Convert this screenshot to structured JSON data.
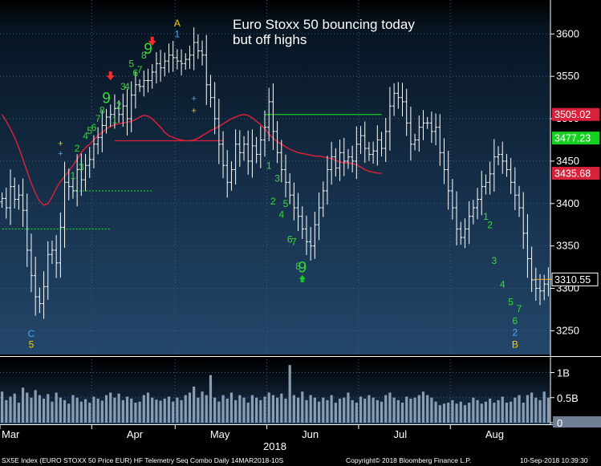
{
  "chart_data": {
    "type": "ohlc",
    "annotation_lines": [
      "Euro Stoxx 50 bouncing today",
      "but off highs"
    ],
    "y_ticks": [
      "3600",
      "3550",
      "3500",
      "3450",
      "3400",
      "3350",
      "3300",
      "3250"
    ],
    "ylim": [
      3222,
      3640
    ],
    "months": [
      {
        "label": "Mar",
        "index": 0
      },
      {
        "label": "Apr",
        "index": 22
      },
      {
        "label": "May",
        "index": 42
      },
      {
        "label": "Jun",
        "index": 64
      },
      {
        "label": "Jul",
        "index": 86
      },
      {
        "label": "Aug",
        "index": 108
      }
    ],
    "year_label": "2018",
    "price_tags": [
      {
        "value": 3505.02,
        "label": "3505.02",
        "color": "#d8213a",
        "text_color": "#ffffff"
      },
      {
        "value": 3477.23,
        "label": "3477.23",
        "color": "#15d11f",
        "text_color": "#ffffff"
      },
      {
        "value": 3435.68,
        "label": "3435.68",
        "color": "#d8213a",
        "text_color": "#ffffff"
      },
      {
        "value": 3310.55,
        "label": "3310.55",
        "color": "#000000",
        "text_color": "#ffffff"
      }
    ],
    "closes": [
      3406,
      3395,
      3420,
      3405,
      3410,
      3392,
      3345,
      3315,
      3290,
      3282,
      3302,
      3340,
      3345,
      3330,
      3372,
      3425,
      3420,
      3415,
      3440,
      3428,
      3445,
      3452,
      3470,
      3478,
      3492,
      3502,
      3505,
      3512,
      3505,
      3515,
      3500,
      3528,
      3540,
      3538,
      3545,
      3545,
      3555,
      3565,
      3560,
      3568,
      3575,
      3572,
      3568,
      3565,
      3570,
      3575,
      3590,
      3580,
      3575,
      3540,
      3525,
      3500,
      3470,
      3445,
      3425,
      3440,
      3470,
      3460,
      3470,
      3450,
      3468,
      3458,
      3475,
      3490,
      3520,
      3485,
      3460,
      3440,
      3425,
      3410,
      3395,
      3385,
      3370,
      3355,
      3350,
      3375,
      3395,
      3415,
      3440,
      3455,
      3442,
      3460,
      3450,
      3455,
      3450,
      3470,
      3480,
      3465,
      3458,
      3462,
      3475,
      3465,
      3485,
      3515,
      3530,
      3525,
      3520,
      3495,
      3470,
      3475,
      3490,
      3495,
      3495,
      3485,
      3490,
      3460,
      3440,
      3415,
      3395,
      3370,
      3360,
      3370,
      3385,
      3395,
      3405,
      3420,
      3425,
      3435,
      3455,
      3458,
      3450,
      3440,
      3425,
      3410,
      3395,
      3365,
      3335,
      3310,
      3300,
      3297,
      3305,
      3310.55
    ],
    "moving_average": [
      3505,
      3497,
      3488,
      3478,
      3466,
      3452,
      3438,
      3424,
      3412,
      3403,
      3398,
      3400,
      3408,
      3418,
      3426,
      3432,
      3438,
      3445,
      3452,
      3460,
      3466,
      3470,
      3475,
      3480,
      3484,
      3488,
      3491,
      3493,
      3494,
      3495,
      3496,
      3497,
      3499,
      3502,
      3504,
      3503,
      3500,
      3495,
      3490,
      3484,
      3480,
      3478,
      3476,
      3475,
      3474,
      3474,
      3475,
      3477,
      3480,
      3483,
      3486,
      3488,
      3491,
      3494,
      3497,
      3500,
      3502,
      3504,
      3505,
      3504,
      3501,
      3497,
      3493,
      3488,
      3482,
      3477,
      3473,
      3470,
      3467,
      3464,
      3462,
      3460,
      3459,
      3458,
      3457,
      3456,
      3456,
      3455,
      3454,
      3453,
      3451,
      3449,
      3448,
      3448,
      3447,
      3446,
      3443,
      3440,
      3438,
      3437,
      3436,
      3435.68
    ],
    "ma_start_index": 0,
    "resistance_lines": [
      {
        "price": 3474,
        "from": 27,
        "to": 53,
        "style": "solid",
        "color": "#d8213a"
      },
      {
        "price": 3505,
        "from": 63,
        "to": 91,
        "style": "solid",
        "color": "#15d11f"
      },
      {
        "price": 3415,
        "from": 17,
        "to": 36,
        "style": "dotted",
        "color": "#15d11f"
      },
      {
        "price": 3370,
        "from": 0,
        "to": 26,
        "style": "dotted",
        "color": "#15d11f"
      }
    ],
    "seq_labels": [
      {
        "t": "1",
        "i": 17,
        "p": 3433,
        "color": "#33dd33",
        "size": 12
      },
      {
        "t": "2",
        "i": 18,
        "p": 3465,
        "color": "#33dd33",
        "size": 12
      },
      {
        "t": "3",
        "i": 19,
        "p": 3443,
        "color": "#33dd33",
        "size": 12
      },
      {
        "t": "4",
        "i": 20,
        "p": 3480,
        "color": "#33dd33",
        "size": 12
      },
      {
        "t": "5",
        "i": 21,
        "p": 3486,
        "color": "#33dd33",
        "size": 12
      },
      {
        "t": "6",
        "i": 22,
        "p": 3490,
        "color": "#33dd33",
        "size": 12
      },
      {
        "t": "7",
        "i": 23,
        "p": 3500,
        "color": "#33dd33",
        "size": 12
      },
      {
        "t": "8",
        "i": 24,
        "p": 3510,
        "color": "#33dd33",
        "size": 12
      },
      {
        "t": "9",
        "i": 25,
        "p": 3525,
        "color": "#33dd33",
        "size": 19
      },
      {
        "t": "1",
        "i": 27,
        "p": 3499,
        "color": "#33dd33",
        "size": 12
      },
      {
        "t": "2",
        "i": 28,
        "p": 3516,
        "color": "#33dd33",
        "size": 12
      },
      {
        "t": "3",
        "i": 29,
        "p": 3538,
        "color": "#33dd33",
        "size": 12
      },
      {
        "t": "4",
        "i": 30,
        "p": 3538,
        "color": "#33dd33",
        "size": 12
      },
      {
        "t": "5",
        "i": 31,
        "p": 3565,
        "color": "#33dd33",
        "size": 12
      },
      {
        "t": "6",
        "i": 32,
        "p": 3554,
        "color": "#33dd33",
        "size": 12
      },
      {
        "t": "7",
        "i": 33,
        "p": 3558,
        "color": "#33dd33",
        "size": 12
      },
      {
        "t": "8",
        "i": 34,
        "p": 3575,
        "color": "#33dd33",
        "size": 12
      },
      {
        "t": "9",
        "i": 35,
        "p": 3583,
        "color": "#33dd33",
        "size": 19
      },
      {
        "t": "A",
        "i": 42,
        "p": 3613,
        "color": "#ffcc00",
        "size": 12
      },
      {
        "t": "1",
        "i": 42,
        "p": 3600,
        "color": "#44aaff",
        "size": 12
      },
      {
        "t": "1",
        "i": 64,
        "p": 3445,
        "color": "#33dd33",
        "size": 12
      },
      {
        "t": "3",
        "i": 66,
        "p": 3430,
        "color": "#33dd33",
        "size": 12
      },
      {
        "t": "2",
        "i": 65,
        "p": 3403,
        "color": "#33dd33",
        "size": 12
      },
      {
        "t": "5",
        "i": 68,
        "p": 3400,
        "color": "#33dd33",
        "size": 12
      },
      {
        "t": "4",
        "i": 67,
        "p": 3387,
        "color": "#33dd33",
        "size": 12
      },
      {
        "t": "6",
        "i": 69,
        "p": 3358,
        "color": "#33dd33",
        "size": 12
      },
      {
        "t": "7",
        "i": 70,
        "p": 3355,
        "color": "#33dd33",
        "size": 12
      },
      {
        "t": "8",
        "i": 71,
        "p": 3326,
        "color": "#33dd33",
        "size": 12
      },
      {
        "t": "9",
        "i": 72,
        "p": 3325,
        "color": "#33dd33",
        "size": 19
      },
      {
        "t": "1",
        "i": 116,
        "p": 3385,
        "color": "#33dd33",
        "size": 12
      },
      {
        "t": "2",
        "i": 117,
        "p": 3375,
        "color": "#33dd33",
        "size": 12
      },
      {
        "t": "3",
        "i": 118,
        "p": 3333,
        "color": "#33dd33",
        "size": 12
      },
      {
        "t": "4",
        "i": 120,
        "p": 3305,
        "color": "#33dd33",
        "size": 12
      },
      {
        "t": "5",
        "i": 122,
        "p": 3284,
        "color": "#33dd33",
        "size": 12
      },
      {
        "t": "7",
        "i": 124,
        "p": 3276,
        "color": "#33dd33",
        "size": 12
      },
      {
        "t": "6",
        "i": 123,
        "p": 3262,
        "color": "#33dd33",
        "size": 12
      },
      {
        "t": "2",
        "i": 123,
        "p": 3248,
        "color": "#44aaff",
        "size": 12
      },
      {
        "t": "B",
        "i": 123,
        "p": 3234,
        "color": "#ffcc00",
        "size": 12
      },
      {
        "t": "C",
        "i": 7,
        "p": 3247,
        "color": "#44aaff",
        "size": 12
      },
      {
        "t": "5",
        "i": 7,
        "p": 3234,
        "color": "#ffcc00",
        "size": 12
      },
      {
        "t": "+",
        "i": 14,
        "p": 3471,
        "color": "#ffcc00",
        "size": 11
      },
      {
        "t": "+",
        "i": 14,
        "p": 3459,
        "color": "#44aaff",
        "size": 11
      },
      {
        "t": "+",
        "i": 46,
        "p": 3524,
        "color": "#44aaff",
        "size": 11
      },
      {
        "t": "+",
        "i": 46,
        "p": 3510,
        "color": "#ffcc00",
        "size": 11
      }
    ],
    "arrows": [
      {
        "dir": "down",
        "i": 26,
        "p": 3550,
        "color": "#ff2a2a"
      },
      {
        "dir": "down",
        "i": 36,
        "p": 3591,
        "color": "#ff2a2a"
      },
      {
        "dir": "up",
        "i": 72,
        "p": 3312,
        "color": "#15d11f"
      }
    ],
    "volume_ticks": [
      "1B",
      "0.5B",
      "0"
    ],
    "volume_ylim": [
      0,
      1.2
    ],
    "volumes": [
      0.62,
      0.45,
      0.52,
      0.58,
      0.4,
      0.7,
      0.6,
      0.5,
      0.65,
      0.55,
      0.48,
      0.57,
      0.42,
      0.6,
      0.5,
      0.45,
      0.38,
      0.55,
      0.5,
      0.42,
      0.47,
      0.4,
      0.52,
      0.48,
      0.44,
      0.55,
      0.6,
      0.5,
      0.58,
      0.45,
      0.52,
      0.48,
      0.4,
      0.42,
      0.55,
      0.6,
      0.5,
      0.46,
      0.44,
      0.48,
      0.52,
      0.42,
      0.5,
      0.45,
      0.55,
      0.6,
      0.72,
      0.5,
      0.62,
      0.55,
      0.95,
      0.5,
      0.42,
      0.55,
      0.48,
      0.6,
      0.45,
      0.55,
      0.5,
      0.4,
      0.55,
      0.5,
      0.45,
      0.52,
      0.6,
      0.55,
      0.5,
      0.58,
      0.48,
      1.15,
      0.55,
      0.5,
      0.62,
      0.45,
      0.55,
      0.5,
      0.42,
      0.5,
      0.45,
      0.55,
      0.4,
      0.48,
      0.5,
      0.6,
      0.45,
      0.4,
      0.52,
      0.48,
      0.55,
      0.5,
      0.45,
      0.42,
      0.55,
      0.6,
      0.5,
      0.45,
      0.4,
      0.52,
      0.48,
      0.5,
      0.55,
      0.62,
      0.55,
      0.5,
      0.42,
      0.35,
      0.38,
      0.4,
      0.45,
      0.38,
      0.42,
      0.35,
      0.4,
      0.5,
      0.45,
      0.38,
      0.42,
      0.48,
      0.4,
      0.45,
      0.52,
      0.4,
      0.42,
      0.5,
      0.55,
      0.4,
      0.55,
      0.6,
      0.5,
      0.45,
      0.62,
      0.5
    ]
  },
  "footer": {
    "index": "SX5E Index (EURO STOXX 50 Price EUR) HF Telemetry Seq Combo  Daily 14MAR2018-10S",
    "copyright": "Copyright© 2018 Bloomberg Finance L.P.",
    "timestamp": "10-Sep-2018 10:39:30"
  }
}
